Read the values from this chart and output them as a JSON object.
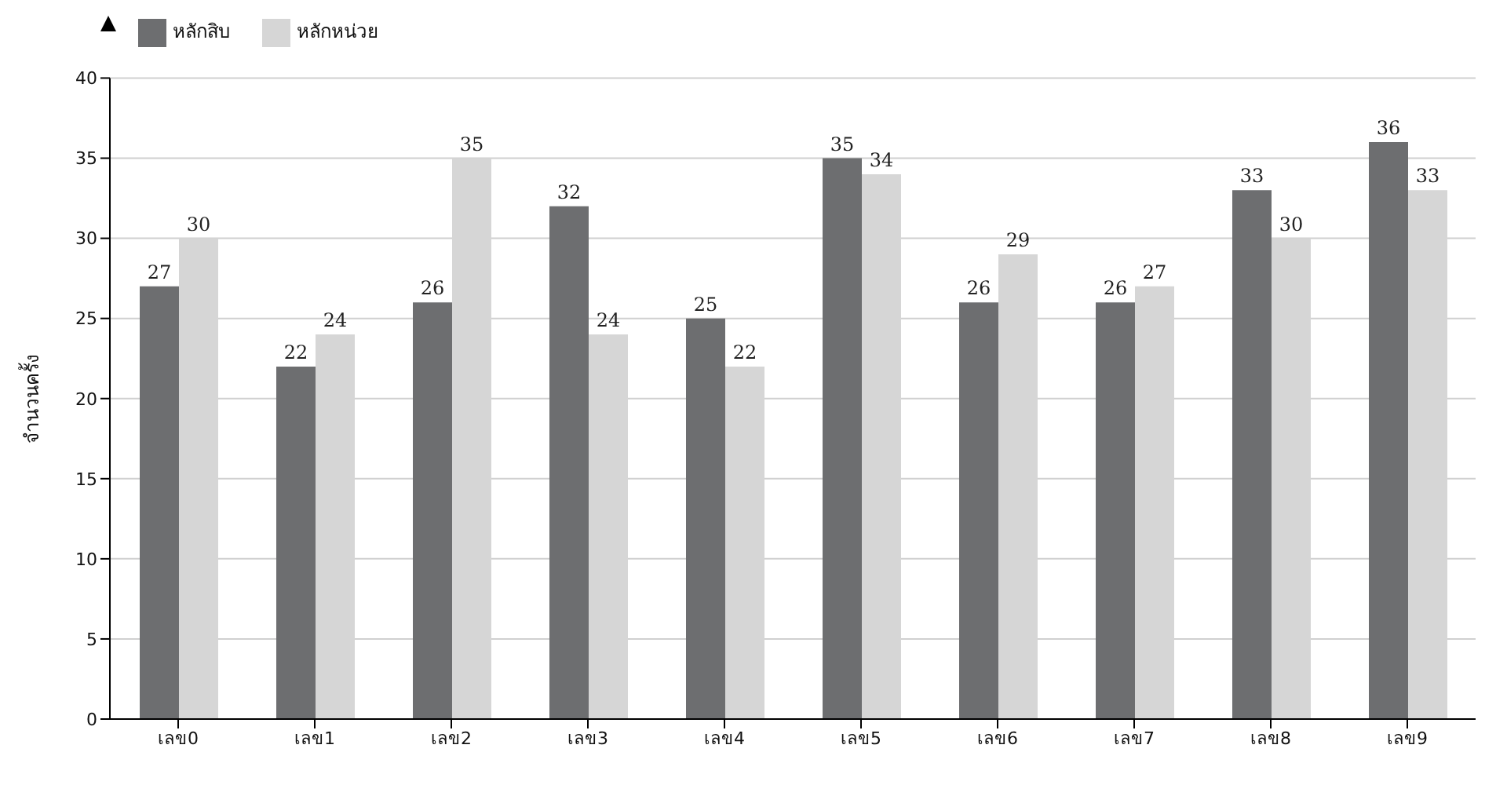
{
  "chart_data": {
    "type": "bar",
    "ylabel": "จำนวนครั้ง",
    "categories": [
      "เลข0",
      "เลข1",
      "เลข2",
      "เลข3",
      "เลข4",
      "เลข5",
      "เลข6",
      "เลข7",
      "เลข8",
      "เลข9"
    ],
    "series": [
      {
        "name": "หลักสิบ",
        "color": "#6d6e70",
        "values": [
          27,
          22,
          26,
          32,
          25,
          35,
          26,
          26,
          33,
          36
        ]
      },
      {
        "name": "หลักหน่วย",
        "color": "#d6d6d6",
        "values": [
          30,
          24,
          35,
          24,
          22,
          34,
          29,
          27,
          30,
          33
        ]
      }
    ],
    "ylim": [
      0,
      40
    ],
    "yticks": [
      0,
      5,
      10,
      15,
      20,
      25,
      30,
      35,
      40
    ],
    "grid": "y",
    "legend": "top left",
    "data_labels": true
  }
}
